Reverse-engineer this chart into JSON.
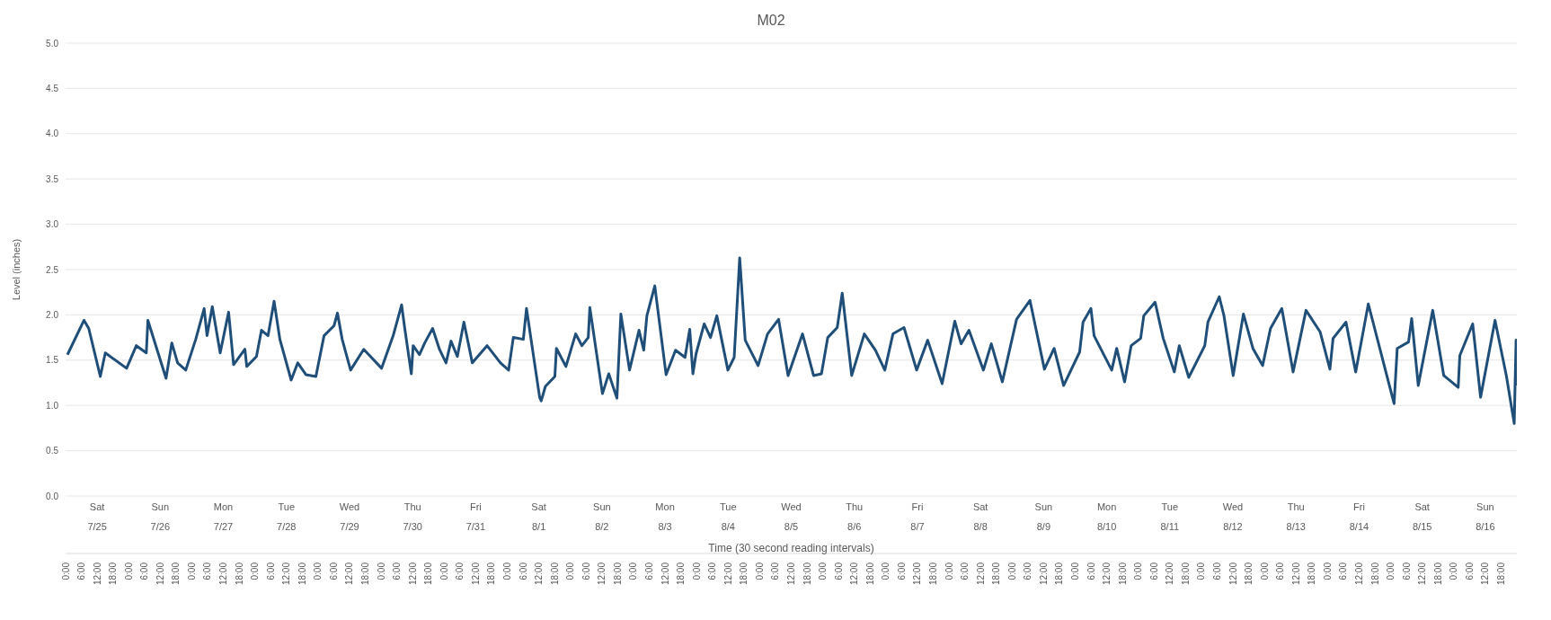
{
  "chart_data": {
    "type": "line",
    "title": "M02",
    "ylabel": "Level (inches)",
    "xlabel": "Time (30 second reading intervals)",
    "x": [
      "--07-25T00:42",
      "--07-25T07:00",
      "--07-25T08:48",
      "--07-25T13:12",
      "--07-25T15:06",
      "--07-25T23:12",
      "--07-26T02:54",
      "--07-26T06:42",
      "--07-26T07:18",
      "--07-26T14:12",
      "--07-26T16:24",
      "--07-26T18:36",
      "--07-26T21:42",
      "--07-27T01:30",
      "--07-27T04:42",
      "--07-27T05:48",
      "--07-27T07:48",
      "--07-27T10:48",
      "--07-27T14:00",
      "--07-27T15:54",
      "--07-27T20:12",
      "--07-27T20:54",
      "--07-28T00:36",
      "--07-28T02:30",
      "--07-28T05:00",
      "--07-28T07:18",
      "--07-28T09:30",
      "--07-28T13:48",
      "--07-28T16:18",
      "--07-28T19:24",
      "--07-28T23:12",
      "--07-29T02:18",
      "--07-29T06:06",
      "--07-29T07:24",
      "--07-29T09:12",
      "--07-29T12:24",
      "--07-29T17:24",
      "--07-30T00:12",
      "--07-30T04:36",
      "--07-30T07:48",
      "--07-30T09:00",
      "--07-30T11:30",
      "--07-30T12:12",
      "--07-30T14:36",
      "--07-30T16:36",
      "--07-30T19:36",
      "--07-30T22:12",
      "--07-31T00:42",
      "--07-31T02:36",
      "--07-31T05:00",
      "--07-31T07:30",
      "--07-31T10:42",
      "--07-31T16:18",
      "--07-31T21:24",
      "--08-01T00:30",
      "--08-01T02:18",
      "--08-01T06:06",
      "--08-01T07:18",
      "--08-01T12:18",
      "--08-01T12:54",
      "--08-01T14:30",
      "--08-01T18:06",
      "--08-01T18:42",
      "--08-01T22:18",
      "--08-02T02:00",
      "--08-02T04:24",
      "--08-02T06:48",
      "--08-02T07:24",
      "--08-02T12:12",
      "--08-02T14:36",
      "--08-02T17:42",
      "--08-02T19:12",
      "--08-02T22:30",
      "--08-03T02:06",
      "--08-03T03:54",
      "--08-03T05:06",
      "--08-03T08:06",
      "--08-03T12:24",
      "--08-03T16:00",
      "--08-03T19:36",
      "--08-03T21:24",
      "--08-03T22:36",
      "--08-03T23:48",
      "--08-04T02:54",
      "--08-04T05:18",
      "--08-04T07:42",
      "--08-04T11:54",
      "--08-04T14:18",
      "--08-04T16:24",
      "--08-04T18:30",
      "--08-04T23:24",
      "--08-05T03:00",
      "--08-05T07:12",
      "--08-05T10:48",
      "--08-05T16:18",
      "--08-05T20:30",
      "--08-05T23:30",
      "--08-06T01:54",
      "--08-06T05:30",
      "--08-06T07:24",
      "--08-06T11:00",
      "--08-06T15:48",
      "--08-06T20:00",
      "--08-06T23:36",
      "--08-07T02:42",
      "--08-07T06:54",
      "--08-07T11:42",
      "--08-07T15:54",
      "--08-07T21:24",
      "--08-08T02:12",
      "--08-08T04:36",
      "--08-08T07:36",
      "--08-08T13:06",
      "--08-08T16:06",
      "--08-08T20:18",
      "--08-09T01:42",
      "--08-09T06:48",
      "--08-09T12:18",
      "--08-09T16:00",
      "--08-09T19:36",
      "--08-10T01:42",
      "--08-10T03:00",
      "--08-10T06:00",
      "--08-10T07:12",
      "--08-10T13:54",
      "--08-10T15:48",
      "--08-10T18:48",
      "--08-10T21:18",
      "--08-11T00:54",
      "--08-11T02:06",
      "--08-11T06:24",
      "--08-11T09:30",
      "--08-11T13:42",
      "--08-11T15:36",
      "--08-11T19:12",
      "--08-12T01:18",
      "--08-12T02:30",
      "--08-12T06:48",
      "--08-12T08:36",
      "--08-12T12:06",
      "--08-12T16:00",
      "--08-12T19:36",
      "--08-12T23:18",
      "--08-13T02:18",
      "--08-13T06:36",
      "--08-13T10:54",
      "--08-13T15:48",
      "--08-13T21:12",
      "--08-14T00:54",
      "--08-14T02:06",
      "--08-14T07:00",
      "--08-14T10:42",
      "--08-14T15:30",
      "--08-15T01:18",
      "--08-15T02:30",
      "--08-15T06:48",
      "--08-15T08:00",
      "--08-15T10:30",
      "--08-15T16:00",
      "--08-15T20:12",
      "--08-16T01:42",
      "--08-16T02:18",
      "--08-16T07:12",
      "--08-16T10:12",
      "--08-16T15:42",
      "--08-16T20:00",
      "--08-16T23:00",
      "--08-16T23:42",
      "--08-17T00:00"
    ],
    "series": [
      {
        "color": "#1f4e79",
        "values": [
          1.56,
          1.94,
          1.85,
          1.32,
          1.58,
          1.41,
          1.66,
          1.58,
          1.94,
          1.3,
          1.69,
          1.47,
          1.39,
          1.73,
          2.07,
          1.77,
          2.09,
          1.58,
          2.03,
          1.45,
          1.62,
          1.43,
          1.54,
          1.83,
          1.77,
          2.15,
          1.73,
          1.28,
          1.47,
          1.34,
          1.32,
          1.77,
          1.88,
          2.02,
          1.73,
          1.39,
          1.62,
          1.41,
          1.77,
          2.11,
          1.85,
          1.35,
          1.66,
          1.56,
          1.69,
          1.85,
          1.62,
          1.47,
          1.71,
          1.54,
          1.92,
          1.47,
          1.66,
          1.47,
          1.39,
          1.75,
          1.73,
          2.07,
          1.09,
          1.05,
          1.21,
          1.32,
          1.63,
          1.43,
          1.79,
          1.66,
          1.75,
          2.08,
          1.13,
          1.35,
          1.08,
          2.01,
          1.39,
          1.83,
          1.61,
          1.99,
          2.32,
          1.34,
          1.61,
          1.53,
          1.84,
          1.35,
          1.57,
          1.9,
          1.75,
          1.99,
          1.39,
          1.53,
          2.63,
          1.72,
          1.44,
          1.79,
          1.95,
          1.33,
          1.79,
          1.33,
          1.35,
          1.75,
          1.86,
          2.24,
          1.33,
          1.79,
          1.61,
          1.39,
          1.79,
          1.86,
          1.39,
          1.72,
          1.24,
          1.93,
          1.68,
          1.83,
          1.39,
          1.68,
          1.26,
          1.95,
          2.16,
          1.4,
          1.63,
          1.22,
          1.59,
          1.92,
          2.07,
          1.77,
          1.39,
          1.63,
          1.26,
          1.66,
          1.74,
          1.99,
          2.14,
          1.74,
          1.37,
          1.66,
          1.31,
          1.66,
          1.92,
          2.2,
          1.99,
          1.33,
          2.01,
          1.63,
          1.44,
          1.85,
          2.07,
          1.37,
          2.05,
          1.81,
          1.4,
          1.74,
          1.92,
          1.37,
          2.12,
          1.02,
          1.63,
          1.7,
          1.96,
          1.22,
          2.05,
          1.33,
          1.2,
          1.55,
          1.9,
          1.09,
          1.94,
          1.33,
          0.8,
          1.72,
          1.22
        ]
      }
    ],
    "xlim": [
      "--07-25T00:00",
      "--08-17T00:00"
    ],
    "xticks": [
      {
        "value": "--07-25T00:00",
        "label": "0:00"
      },
      {
        "value": "--07-25T06:00",
        "label": "6:00"
      },
      {
        "value": "--07-25T12:00",
        "label": "12:00"
      },
      {
        "value": "--07-25T18:00",
        "label": "18:00"
      },
      {
        "value": "--07-26T00:00",
        "label": "0:00"
      },
      {
        "value": "--07-26T06:00",
        "label": "6:00"
      },
      {
        "value": "--07-26T12:00",
        "label": "12:00"
      },
      {
        "value": "--07-26T18:00",
        "label": "18:00"
      },
      {
        "value": "--07-27T00:00",
        "label": "0:00"
      },
      {
        "value": "--07-27T06:00",
        "label": "6:00"
      },
      {
        "value": "--07-27T12:00",
        "label": "12:00"
      },
      {
        "value": "--07-27T18:00",
        "label": "18:00"
      },
      {
        "value": "--07-28T00:00",
        "label": "0:00"
      },
      {
        "value": "--07-28T06:00",
        "label": "6:00"
      },
      {
        "value": "--07-28T12:00",
        "label": "12:00"
      },
      {
        "value": "--07-28T18:00",
        "label": "18:00"
      },
      {
        "value": "--07-29T00:00",
        "label": "0:00"
      },
      {
        "value": "--07-29T06:00",
        "label": "6:00"
      },
      {
        "value": "--07-29T12:00",
        "label": "12:00"
      },
      {
        "value": "--07-29T18:00",
        "label": "18:00"
      },
      {
        "value": "--07-30T00:00",
        "label": "0:00"
      },
      {
        "value": "--07-30T06:00",
        "label": "6:00"
      },
      {
        "value": "--07-30T12:00",
        "label": "12:00"
      },
      {
        "value": "--07-30T18:00",
        "label": "18:00"
      },
      {
        "value": "--07-31T00:00",
        "label": "0:00"
      },
      {
        "value": "--07-31T06:00",
        "label": "6:00"
      },
      {
        "value": "--07-31T12:00",
        "label": "12:00"
      },
      {
        "value": "--07-31T18:00",
        "label": "18:00"
      },
      {
        "value": "--08-01T00:00",
        "label": "0:00"
      },
      {
        "value": "--08-01T06:00",
        "label": "6:00"
      },
      {
        "value": "--08-01T12:00",
        "label": "12:00"
      },
      {
        "value": "--08-01T18:00",
        "label": "18:00"
      },
      {
        "value": "--08-02T00:00",
        "label": "0:00"
      },
      {
        "value": "--08-02T06:00",
        "label": "6:00"
      },
      {
        "value": "--08-02T12:00",
        "label": "12:00"
      },
      {
        "value": "--08-02T18:00",
        "label": "18:00"
      },
      {
        "value": "--08-03T00:00",
        "label": "0:00"
      },
      {
        "value": "--08-03T06:00",
        "label": "6:00"
      },
      {
        "value": "--08-03T12:00",
        "label": "12:00"
      },
      {
        "value": "--08-03T18:00",
        "label": "18:00"
      },
      {
        "value": "--08-04T00:00",
        "label": "0:00"
      },
      {
        "value": "--08-04T06:00",
        "label": "6:00"
      },
      {
        "value": "--08-04T12:00",
        "label": "12:00"
      },
      {
        "value": "--08-04T18:00",
        "label": "18:00"
      },
      {
        "value": "--08-05T00:00",
        "label": "0:00"
      },
      {
        "value": "--08-05T06:00",
        "label": "6:00"
      },
      {
        "value": "--08-05T12:00",
        "label": "12:00"
      },
      {
        "value": "--08-05T18:00",
        "label": "18:00"
      },
      {
        "value": "--08-06T00:00",
        "label": "0:00"
      },
      {
        "value": "--08-06T06:00",
        "label": "6:00"
      },
      {
        "value": "--08-06T12:00",
        "label": "12:00"
      },
      {
        "value": "--08-06T18:00",
        "label": "18:00"
      },
      {
        "value": "--08-07T00:00",
        "label": "0:00"
      },
      {
        "value": "--08-07T06:00",
        "label": "6:00"
      },
      {
        "value": "--08-07T12:00",
        "label": "12:00"
      },
      {
        "value": "--08-07T18:00",
        "label": "18:00"
      },
      {
        "value": "--08-08T00:00",
        "label": "0:00"
      },
      {
        "value": "--08-08T06:00",
        "label": "6:00"
      },
      {
        "value": "--08-08T12:00",
        "label": "12:00"
      },
      {
        "value": "--08-08T18:00",
        "label": "18:00"
      },
      {
        "value": "--08-09T00:00",
        "label": "0:00"
      },
      {
        "value": "--08-09T06:00",
        "label": "6:00"
      },
      {
        "value": "--08-09T12:00",
        "label": "12:00"
      },
      {
        "value": "--08-09T18:00",
        "label": "18:00"
      },
      {
        "value": "--08-10T00:00",
        "label": "0:00"
      },
      {
        "value": "--08-10T06:00",
        "label": "6:00"
      },
      {
        "value": "--08-10T12:00",
        "label": "12:00"
      },
      {
        "value": "--08-10T18:00",
        "label": "18:00"
      },
      {
        "value": "--08-11T00:00",
        "label": "0:00"
      },
      {
        "value": "--08-11T06:00",
        "label": "6:00"
      },
      {
        "value": "--08-11T12:00",
        "label": "12:00"
      },
      {
        "value": "--08-11T18:00",
        "label": "18:00"
      },
      {
        "value": "--08-12T00:00",
        "label": "0:00"
      },
      {
        "value": "--08-12T06:00",
        "label": "6:00"
      },
      {
        "value": "--08-12T12:00",
        "label": "12:00"
      },
      {
        "value": "--08-12T18:00",
        "label": "18:00"
      },
      {
        "value": "--08-13T00:00",
        "label": "0:00"
      },
      {
        "value": "--08-13T06:00",
        "label": "6:00"
      },
      {
        "value": "--08-13T12:00",
        "label": "12:00"
      },
      {
        "value": "--08-13T18:00",
        "label": "18:00"
      },
      {
        "value": "--08-14T00:00",
        "label": "0:00"
      },
      {
        "value": "--08-14T06:00",
        "label": "6:00"
      },
      {
        "value": "--08-14T12:00",
        "label": "12:00"
      },
      {
        "value": "--08-14T18:00",
        "label": "18:00"
      },
      {
        "value": "--08-15T00:00",
        "label": "0:00"
      },
      {
        "value": "--08-15T06:00",
        "label": "6:00"
      },
      {
        "value": "--08-15T12:00",
        "label": "12:00"
      },
      {
        "value": "--08-15T18:00",
        "label": "18:00"
      },
      {
        "value": "--08-16T00:00",
        "label": "0:00"
      },
      {
        "value": "--08-16T06:00",
        "label": "6:00"
      },
      {
        "value": "--08-16T12:00",
        "label": "12:00"
      },
      {
        "value": "--08-16T18:00",
        "label": "18:00"
      }
    ],
    "x2lim": [
      "--07-25T00:00",
      "--08-17T00:00"
    ],
    "x2ticks": [
      {
        "value": "--07-25T12:00",
        "label": "7/25"
      },
      {
        "value": "--07-26T12:00",
        "label": "7/26"
      },
      {
        "value": "--07-27T12:00",
        "label": "7/27"
      },
      {
        "value": "--07-28T12:00",
        "label": "7/28"
      },
      {
        "value": "--07-29T12:00",
        "label": "7/29"
      },
      {
        "value": "--07-30T12:00",
        "label": "7/30"
      },
      {
        "value": "--07-31T12:00",
        "label": "7/31"
      },
      {
        "value": "--08-01T12:00",
        "label": "8/1"
      },
      {
        "value": "--08-02T12:00",
        "label": "8/2"
      },
      {
        "value": "--08-03T12:00",
        "label": "8/3"
      },
      {
        "value": "--08-04T12:00",
        "label": "8/4"
      },
      {
        "value": "--08-05T12:00",
        "label": "8/5"
      },
      {
        "value": "--08-06T12:00",
        "label": "8/6"
      },
      {
        "value": "--08-07T12:00",
        "label": "8/7"
      },
      {
        "value": "--08-08T12:00",
        "label": "8/8"
      },
      {
        "value": "--08-09T12:00",
        "label": "8/9"
      },
      {
        "value": "--08-10T12:00",
        "label": "8/10"
      },
      {
        "value": "--08-11T12:00",
        "label": "8/11"
      },
      {
        "value": "--08-12T12:00",
        "label": "8/12"
      },
      {
        "value": "--08-13T12:00",
        "label": "8/13"
      },
      {
        "value": "--08-14T12:00",
        "label": "8/14"
      },
      {
        "value": "--08-15T12:00",
        "label": "8/15"
      },
      {
        "value": "--08-16T12:00",
        "label": "8/16"
      }
    ],
    "annotations": [
      "Sat",
      "Sun",
      "Mon",
      "Tue",
      "Wed",
      "Thu",
      "Fri",
      "Sat",
      "Sun",
      "Mon",
      "Tue",
      "Wed",
      "Thu",
      "Fri",
      "Sat",
      "Sun",
      "Mon",
      "Tue",
      "Wed",
      "Thu",
      "Fri",
      "Sat",
      "Sun"
    ],
    "ylim": [
      0,
      5
    ],
    "yticks": [
      {
        "value": 0,
        "label": "0.0"
      },
      {
        "value": 0.5,
        "label": "0.5"
      },
      {
        "value": 1,
        "label": "1.0"
      },
      {
        "value": 1.5,
        "label": "1.5"
      },
      {
        "value": 2,
        "label": "2.0"
      },
      {
        "value": 2.5,
        "label": "2.5"
      },
      {
        "value": 3,
        "label": "3.0"
      },
      {
        "value": 3.5,
        "label": "3.5"
      },
      {
        "value": 4,
        "label": "4.0"
      },
      {
        "value": 4.5,
        "label": "4.5"
      },
      {
        "value": 5,
        "label": "5.0"
      }
    ],
    "grid": "y"
  }
}
